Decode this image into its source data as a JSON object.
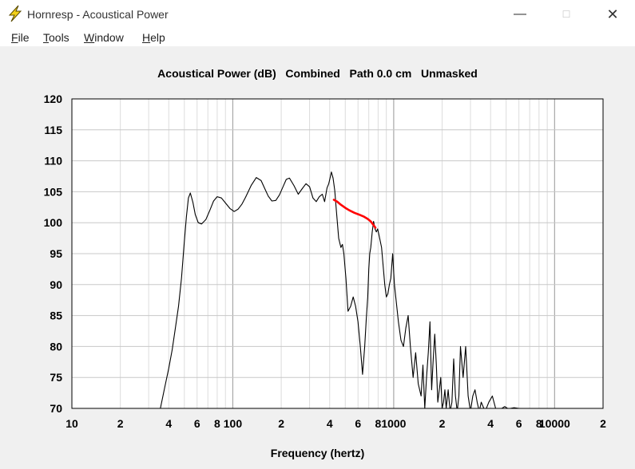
{
  "window": {
    "title": "Hornresp - Acoustical Power",
    "minimize_glyph": "—",
    "maximize_glyph": "☐",
    "close_glyph": "✕",
    "icon": "lightning-bolt-icon"
  },
  "menu": {
    "items": [
      {
        "label_ul": "F",
        "label_rest": "ile"
      },
      {
        "label_ul": "T",
        "label_rest": "ools"
      },
      {
        "label_ul": "W",
        "label_rest": "indow"
      },
      {
        "label_ul": "H",
        "label_rest": "elp"
      }
    ]
  },
  "colors": {
    "trace": "#000000",
    "highlight": "#ff0000",
    "grid": "#c8c8c8",
    "plot_bg": "#ffffff"
  },
  "chart_data": {
    "type": "line",
    "title": "Acoustical Power (dB)   Combined   Path 0.0 cm   Unmasked",
    "xlabel": "Frequency (hertz)",
    "ylabel": "",
    "xscale": "log",
    "xlim": [
      10,
      20000
    ],
    "ylim": [
      70,
      120
    ],
    "grid": true,
    "yticks": [
      "120",
      "115",
      "110",
      "105",
      "100",
      "95",
      "90",
      "85",
      "80",
      "75",
      "70"
    ],
    "xticks": [
      {
        "v": 10,
        "label": "10"
      },
      {
        "v": 20,
        "label": "2"
      },
      {
        "v": 40,
        "label": "4"
      },
      {
        "v": 60,
        "label": "6"
      },
      {
        "v": 80,
        "label": "8"
      },
      {
        "v": 100,
        "label": "100"
      },
      {
        "v": 200,
        "label": "2"
      },
      {
        "v": 400,
        "label": "4"
      },
      {
        "v": 600,
        "label": "6"
      },
      {
        "v": 800,
        "label": "8"
      },
      {
        "v": 1000,
        "label": "1000"
      },
      {
        "v": 2000,
        "label": "2"
      },
      {
        "v": 4000,
        "label": "4"
      },
      {
        "v": 6000,
        "label": "6"
      },
      {
        "v": 8000,
        "label": "8"
      },
      {
        "v": 10000,
        "label": "10000"
      },
      {
        "v": 20000,
        "label": "2"
      }
    ],
    "series": [
      {
        "role": "response",
        "x": [
          35.5,
          37.5,
          40,
          42,
          44,
          46,
          48,
          50,
          51.5,
          53,
          54.5,
          56.5,
          58.5,
          61,
          64,
          68,
          72,
          76,
          80,
          85,
          90,
          96,
          102,
          108,
          114,
          120,
          130,
          140,
          150,
          158,
          166,
          175,
          185,
          195,
          205,
          215,
          225,
          240,
          255,
          270,
          285,
          300,
          315,
          330,
          345,
          360,
          372,
          385,
          395,
          402,
          410,
          420,
          430,
          440,
          455,
          470,
          480,
          490,
          505,
          520,
          540,
          560,
          580,
          600,
          620,
          640,
          660,
          675,
          690,
          700,
          710,
          720,
          735,
          750,
          765,
          780,
          795,
          810,
          825,
          840,
          860,
          880,
          900,
          920,
          940,
          960,
          985,
          1010,
          1040,
          1070,
          1110,
          1150,
          1190,
          1230,
          1270,
          1320,
          1370,
          1420,
          1480,
          1520,
          1560,
          1600,
          1640,
          1680,
          1720,
          1760,
          1800,
          1840,
          1880,
          1920,
          1960,
          2000,
          2040,
          2080,
          2120,
          2180,
          2240,
          2300,
          2360,
          2420,
          2480,
          2540,
          2600,
          2700,
          2800,
          2900,
          3000,
          3100,
          3200,
          3300,
          3400,
          3500,
          3700,
          3900,
          4100,
          4300,
          4500,
          4700,
          4900,
          5100,
          5300,
          5600,
          6000
        ],
        "y": [
          70,
          73,
          76.5,
          79.5,
          83,
          86.5,
          91,
          97,
          101,
          104,
          104.8,
          103.3,
          101.3,
          100,
          99.8,
          100.5,
          102,
          103.5,
          104.2,
          104,
          103.2,
          102.3,
          101.8,
          102.2,
          103,
          104.1,
          106,
          107.3,
          106.8,
          105.5,
          104.3,
          103.5,
          103.6,
          104.5,
          105.8,
          107,
          107.2,
          106,
          104.6,
          105.5,
          106.3,
          105.8,
          104,
          103.4,
          104.2,
          104.6,
          103.4,
          105.6,
          106.3,
          107.2,
          108.2,
          107.2,
          105.2,
          102,
          97.5,
          96,
          96.5,
          95,
          91,
          85.7,
          86.5,
          88,
          86.5,
          84,
          80,
          75.5,
          80,
          84.3,
          88,
          92.5,
          95,
          96,
          98.5,
          100.2,
          99,
          98.5,
          99,
          98,
          97,
          96,
          93,
          90,
          88,
          88.5,
          90,
          91,
          95,
          90,
          87,
          84,
          81,
          80,
          83,
          85,
          80,
          75,
          79,
          74,
          72,
          77,
          70,
          75,
          79,
          84,
          73,
          78,
          82,
          77,
          71,
          73,
          75,
          70,
          71,
          73,
          70,
          73,
          69.5,
          71,
          78,
          72,
          69.5,
          72,
          80,
          75,
          80,
          72,
          69.5,
          72,
          73,
          71,
          69.5,
          71,
          69.5,
          71,
          72,
          70,
          69.5,
          70,
          70.3,
          70,
          70,
          70.1,
          70
        ]
      },
      {
        "role": "highlight",
        "x": [
          425,
          445,
          470,
          500,
          530,
          570,
          610,
          650,
          690,
          720,
          740,
          755,
          770
        ],
        "y": [
          103.7,
          103.4,
          102.9,
          102.4,
          102,
          101.6,
          101.3,
          101,
          100.6,
          100.2,
          99.8,
          99.5,
          99.2
        ]
      }
    ]
  },
  "labels": {
    "chart_title": "Acoustical Power (dB)   Combined   Path 0.0 cm   Unmasked",
    "x_axis": "Frequency (hertz)"
  }
}
